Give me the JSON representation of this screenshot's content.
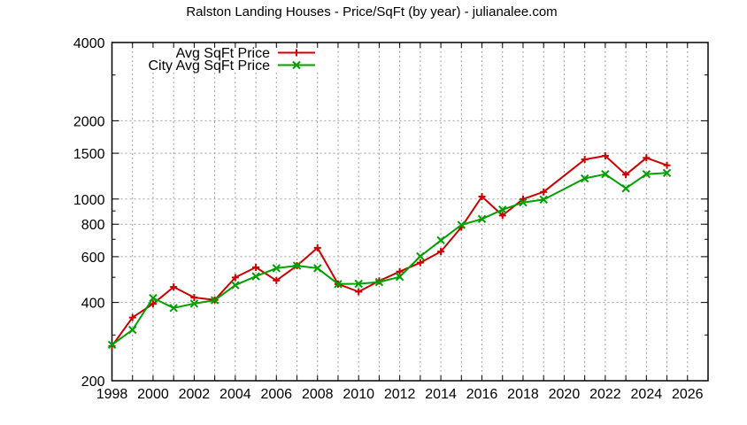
{
  "chart_data": {
    "type": "line",
    "title": "Ralston Landing Houses - Price/SqFt (by year) - julianalee.com",
    "xlabel": "",
    "ylabel": "",
    "yscale": "log",
    "xlim": [
      1998,
      2027
    ],
    "ylim": [
      200,
      4000
    ],
    "x_tick_labels": [
      "1998",
      "2000",
      "2002",
      "2004",
      "2006",
      "2008",
      "2010",
      "2012",
      "2014",
      "2016",
      "2018",
      "2020",
      "2022",
      "2024",
      "2026"
    ],
    "y_tick_labels": [
      "200",
      "400",
      "600",
      "800",
      "1000",
      "1500",
      "2000",
      "4000"
    ],
    "y_minor_ticks": [
      300,
      500,
      700,
      900,
      3000
    ],
    "grid": true,
    "legend_position": "top-left",
    "series": [
      {
        "name": "Avg SqFt Price",
        "color": "#cc0000",
        "marker": "plus",
        "x": [
          1998,
          1999,
          2000,
          2001,
          2002,
          2003,
          2004,
          2005,
          2006,
          2007,
          2008,
          2009,
          2010,
          2011,
          2012,
          2013,
          2014,
          2015,
          2016,
          2017,
          2018,
          2019,
          2021,
          2022,
          2023,
          2024,
          2025
        ],
        "values": [
          272,
          350,
          395,
          459,
          418,
          409,
          499,
          546,
          486,
          554,
          649,
          471,
          440,
          484,
          526,
          569,
          628,
          779,
          1022,
          864,
          1000,
          1065,
          1420,
          1466,
          1240,
          1440,
          1348
        ]
      },
      {
        "name": "City Avg SqFt Price",
        "color": "#00a000",
        "marker": "cross",
        "x": [
          1998,
          1999,
          2000,
          2001,
          2002,
          2003,
          2004,
          2005,
          2006,
          2007,
          2008,
          2009,
          2010,
          2011,
          2012,
          2013,
          2014,
          2015,
          2016,
          2017,
          2018,
          2019,
          2021,
          2022,
          2023,
          2024,
          2025
        ],
        "values": [
          275,
          314,
          416,
          381,
          396,
          408,
          466,
          504,
          542,
          554,
          542,
          471,
          472,
          479,
          502,
          602,
          694,
          795,
          838,
          910,
          970,
          995,
          1200,
          1246,
          1099,
          1246,
          1260
        ]
      }
    ]
  }
}
